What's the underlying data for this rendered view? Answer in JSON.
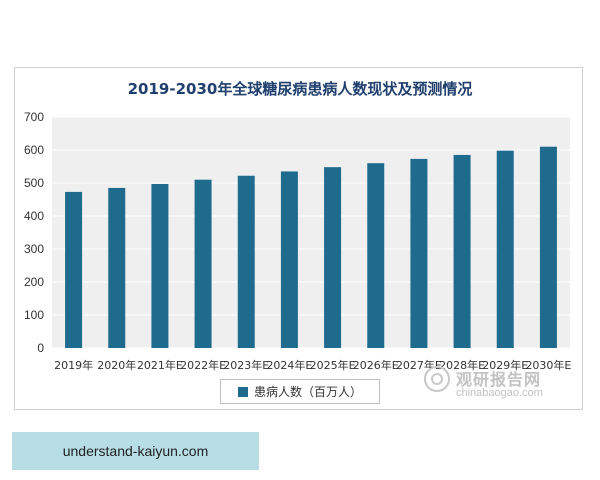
{
  "chart_data": {
    "type": "bar",
    "title": "2019-2030年全球糖尿病患病人数现状及预测情况",
    "xlabel": "",
    "ylabel": "",
    "categories": [
      "2019年",
      "2020年",
      "2021年E",
      "2022年E",
      "2023年E",
      "2024年E",
      "2025年E",
      "2026年E",
      "2027年E",
      "2028年E",
      "2029年E",
      "2030年E"
    ],
    "series": [
      {
        "name": "患病人数（百万人）",
        "values": [
          473,
          485,
          497,
          510,
          522,
          535,
          548,
          560,
          573,
          585,
          598,
          610
        ]
      }
    ],
    "ylim": [
      0,
      700
    ],
    "yticks": [
      0,
      100,
      200,
      300,
      400,
      500,
      600,
      700
    ],
    "grid": true,
    "legend_position": "bottom",
    "bar_color": "#1f6b8e"
  },
  "watermark": {
    "brand": "观研报告网",
    "domain": "chinabaogao.com"
  },
  "source_tag": "understand-kaiyun.com"
}
